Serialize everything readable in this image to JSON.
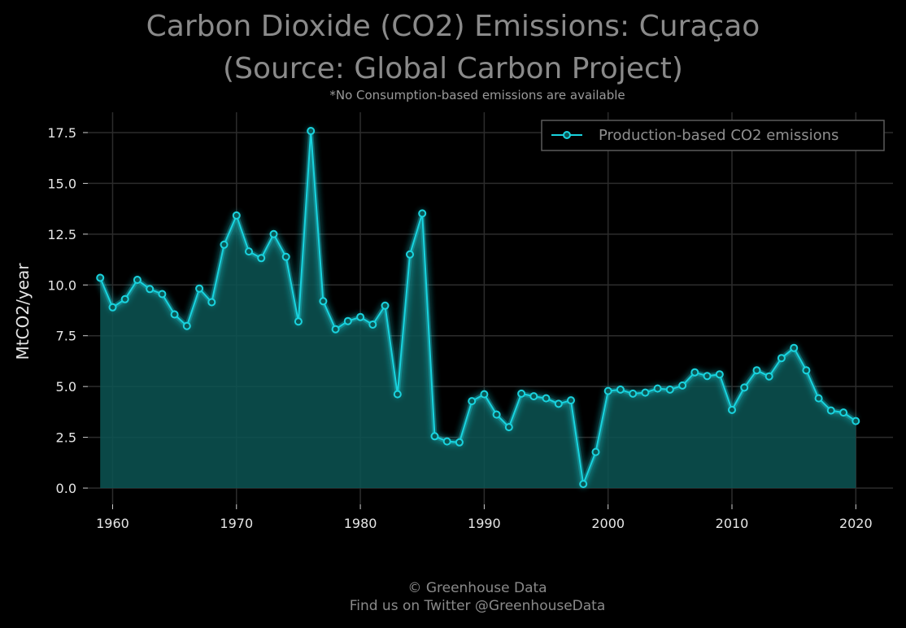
{
  "title_line1": "Carbon Dioxide (CO2) Emissions: Curaçao",
  "title_line2": "(Source: Global Carbon Project)",
  "subtitle": "*No Consumption-based emissions are available",
  "footer_line1": "© Greenhouse Data",
  "footer_line2": "Find us on Twitter @GreenhouseData",
  "colors": {
    "background": "#000000",
    "line": "#19d3de",
    "fill": "#0c5553",
    "grid": "#2c2c2c",
    "text": "#8a8a8a"
  },
  "chart_data": {
    "type": "area",
    "ylabel": "MtCO2/year",
    "xlabel": "",
    "xlim": [
      1958,
      2023
    ],
    "ylim": [
      -0.8,
      18.5
    ],
    "xticks": [
      1960,
      1970,
      1980,
      1990,
      2000,
      2010,
      2020
    ],
    "yticks": [
      0.0,
      2.5,
      5.0,
      7.5,
      10.0,
      12.5,
      15.0,
      17.5
    ],
    "ytick_labels": [
      "0.0",
      "2.5",
      "5.0",
      "7.5",
      "10.0",
      "12.5",
      "15.0",
      "17.5"
    ],
    "grid": true,
    "legend_position": "top-right",
    "series": [
      {
        "name": "Production-based CO2 emissions",
        "x": [
          1959,
          1960,
          1961,
          1962,
          1963,
          1964,
          1965,
          1966,
          1967,
          1968,
          1969,
          1970,
          1971,
          1972,
          1973,
          1974,
          1975,
          1976,
          1977,
          1978,
          1979,
          1980,
          1981,
          1982,
          1983,
          1984,
          1985,
          1986,
          1987,
          1988,
          1989,
          1990,
          1991,
          1992,
          1993,
          1994,
          1995,
          1996,
          1997,
          1998,
          1999,
          2000,
          2001,
          2002,
          2003,
          2004,
          2005,
          2006,
          2007,
          2008,
          2009,
          2010,
          2011,
          2012,
          2013,
          2014,
          2015,
          2016,
          2017,
          2018,
          2019,
          2020
        ],
        "y": [
          10.35,
          8.9,
          9.3,
          10.25,
          9.8,
          9.55,
          8.55,
          7.98,
          9.82,
          9.15,
          11.98,
          13.42,
          11.65,
          11.32,
          12.5,
          11.38,
          8.2,
          17.58,
          9.2,
          7.82,
          8.22,
          8.42,
          8.05,
          8.98,
          4.62,
          11.5,
          13.52,
          2.55,
          2.3,
          2.25,
          4.28,
          4.62,
          3.62,
          3.0,
          4.65,
          4.52,
          4.42,
          4.15,
          4.32,
          0.2,
          1.78,
          4.78,
          4.85,
          4.65,
          4.7,
          4.9,
          4.85,
          5.05,
          5.7,
          5.52,
          5.6,
          3.85,
          4.95,
          5.8,
          5.5,
          6.4,
          6.9,
          5.8,
          4.42,
          3.82,
          3.72,
          3.3
        ]
      }
    ]
  }
}
